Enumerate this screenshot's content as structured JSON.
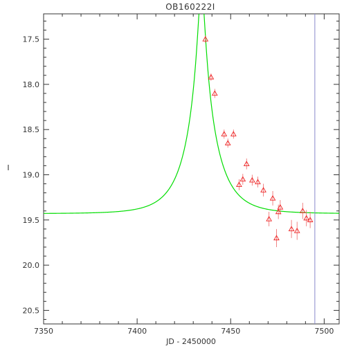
{
  "chart_data": {
    "type": "scatter",
    "title": "OB160222I",
    "xlabel": "JD - 2450000",
    "ylabel": "I",
    "xlim": [
      7350,
      7508
    ],
    "ylim": [
      20.65,
      17.22
    ],
    "y_inverted": true,
    "grid": false,
    "x_ticks": [
      7350,
      7400,
      7450,
      7500
    ],
    "x_tick_labels": [
      "7350",
      "7400",
      "7450",
      "7500"
    ],
    "y_ticks": [
      17.5,
      18.0,
      18.5,
      19.0,
      19.5,
      20.0,
      20.5
    ],
    "y_tick_labels": [
      "17.5",
      "18.0",
      "18.5",
      "19.0",
      "19.5",
      "20.0",
      "20.5"
    ],
    "vertical_line_x": 7495,
    "model": {
      "t0": 7434.4,
      "u0": 0.1,
      "tE": 16,
      "baseline": 19.43,
      "color": "#00dd00"
    },
    "points": [
      {
        "x": 7436.5,
        "y": 17.5,
        "err": 0.04
      },
      {
        "x": 7439.5,
        "y": 17.92,
        "err": 0.04
      },
      {
        "x": 7441.5,
        "y": 18.1,
        "err": 0.05
      },
      {
        "x": 7446.5,
        "y": 18.55,
        "err": 0.05
      },
      {
        "x": 7448.5,
        "y": 18.65,
        "err": 0.05
      },
      {
        "x": 7451.5,
        "y": 18.55,
        "err": 0.05
      },
      {
        "x": 7454.5,
        "y": 19.11,
        "err": 0.06
      },
      {
        "x": 7456.5,
        "y": 19.05,
        "err": 0.06
      },
      {
        "x": 7458.5,
        "y": 18.88,
        "err": 0.06
      },
      {
        "x": 7461.5,
        "y": 19.06,
        "err": 0.06
      },
      {
        "x": 7464.5,
        "y": 19.08,
        "err": 0.06
      },
      {
        "x": 7467.5,
        "y": 19.17,
        "err": 0.07
      },
      {
        "x": 7470.5,
        "y": 19.49,
        "err": 0.08
      },
      {
        "x": 7472.5,
        "y": 19.26,
        "err": 0.08
      },
      {
        "x": 7474.5,
        "y": 19.7,
        "err": 0.1
      },
      {
        "x": 7475.5,
        "y": 19.41,
        "err": 0.08
      },
      {
        "x": 7476.5,
        "y": 19.36,
        "err": 0.08
      },
      {
        "x": 7482.5,
        "y": 19.6,
        "err": 0.1
      },
      {
        "x": 7485.5,
        "y": 19.62,
        "err": 0.1
      },
      {
        "x": 7488.5,
        "y": 19.4,
        "err": 0.09
      },
      {
        "x": 7490.5,
        "y": 19.48,
        "err": 0.09
      },
      {
        "x": 7492.5,
        "y": 19.5,
        "err": 0.09
      }
    ],
    "colors": {
      "points": "#ee2222",
      "error_bars": "#ee6666",
      "vertical_line": "#8888cc",
      "axes": "#333333"
    }
  }
}
